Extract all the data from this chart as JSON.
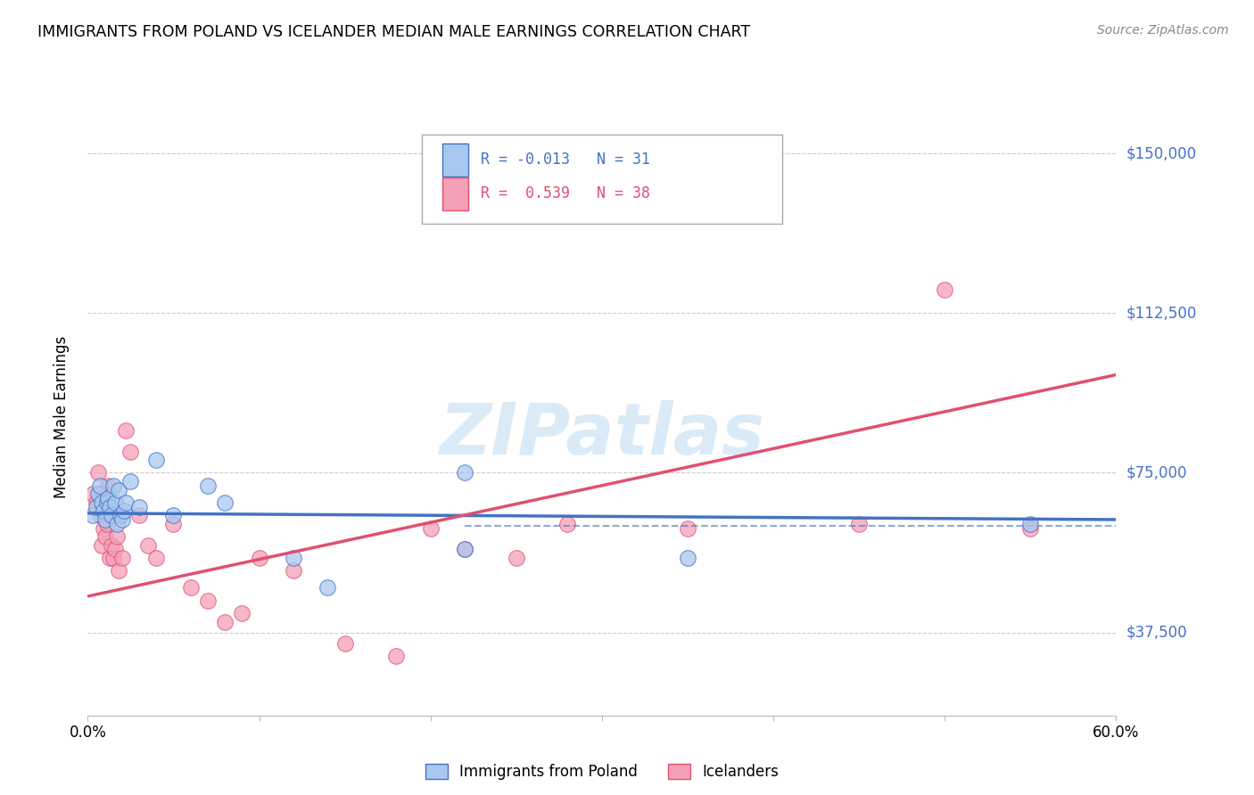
{
  "title": "IMMIGRANTS FROM POLAND VS ICELANDER MEDIAN MALE EARNINGS CORRELATION CHART",
  "source": "Source: ZipAtlas.com",
  "ylabel": "Median Male Earnings",
  "xlim": [
    0.0,
    0.6
  ],
  "ylim": [
    18000,
    158000
  ],
  "ytick_vals": [
    37500,
    75000,
    112500,
    150000
  ],
  "ytick_labels": [
    "$37,500",
    "$75,000",
    "$112,500",
    "$150,000"
  ],
  "xticks": [
    0.0,
    0.1,
    0.2,
    0.3,
    0.4,
    0.5,
    0.6
  ],
  "xtick_labels": [
    "0.0%",
    "",
    "",
    "",
    "",
    "",
    "60.0%"
  ],
  "legend_label1": "Immigrants from Poland",
  "legend_label2": "Icelanders",
  "R1": "-0.013",
  "N1": "31",
  "R2": "0.539",
  "N2": "38",
  "blue_color": "#a8c8f0",
  "pink_color": "#f4a0b8",
  "blue_line_color": "#4472c4",
  "pink_line_color": "#e05070",
  "grid_color": "#cccccc",
  "axis_label_color": "#4472c4",
  "watermark_color": "#daeaf7",
  "blue_scatter_x": [
    0.003,
    0.005,
    0.006,
    0.007,
    0.008,
    0.009,
    0.01,
    0.011,
    0.012,
    0.013,
    0.014,
    0.015,
    0.016,
    0.017,
    0.018,
    0.019,
    0.02,
    0.021,
    0.022,
    0.025,
    0.03,
    0.04,
    0.05,
    0.07,
    0.08,
    0.12,
    0.14,
    0.22,
    0.22,
    0.35,
    0.55
  ],
  "blue_scatter_y": [
    65000,
    67000,
    70000,
    72000,
    68000,
    66000,
    64000,
    68000,
    69000,
    67000,
    65000,
    72000,
    68000,
    63000,
    71000,
    65000,
    64000,
    66000,
    68000,
    73000,
    67000,
    78000,
    65000,
    72000,
    68000,
    55000,
    48000,
    75000,
    57000,
    55000,
    63000
  ],
  "pink_scatter_x": [
    0.003,
    0.005,
    0.006,
    0.007,
    0.008,
    0.009,
    0.01,
    0.011,
    0.012,
    0.013,
    0.014,
    0.015,
    0.016,
    0.017,
    0.018,
    0.02,
    0.022,
    0.025,
    0.03,
    0.035,
    0.04,
    0.05,
    0.06,
    0.07,
    0.08,
    0.09,
    0.1,
    0.12,
    0.15,
    0.18,
    0.2,
    0.22,
    0.25,
    0.28,
    0.35,
    0.45,
    0.5,
    0.55
  ],
  "pink_scatter_y": [
    70000,
    68000,
    75000,
    65000,
    58000,
    62000,
    60000,
    63000,
    72000,
    55000,
    58000,
    55000,
    57000,
    60000,
    52000,
    55000,
    85000,
    80000,
    65000,
    58000,
    55000,
    63000,
    48000,
    45000,
    40000,
    42000,
    55000,
    52000,
    35000,
    32000,
    62000,
    57000,
    55000,
    63000,
    62000,
    63000,
    118000,
    62000
  ],
  "blue_trend_x": [
    0.0,
    0.6
  ],
  "blue_trend_y": [
    65500,
    64000
  ],
  "pink_trend_x": [
    0.0,
    0.6
  ],
  "pink_trend_y": [
    46000,
    98000
  ],
  "dashed_line_y": 62500,
  "dashed_line_xmin": 0.22,
  "background_color": "#ffffff"
}
